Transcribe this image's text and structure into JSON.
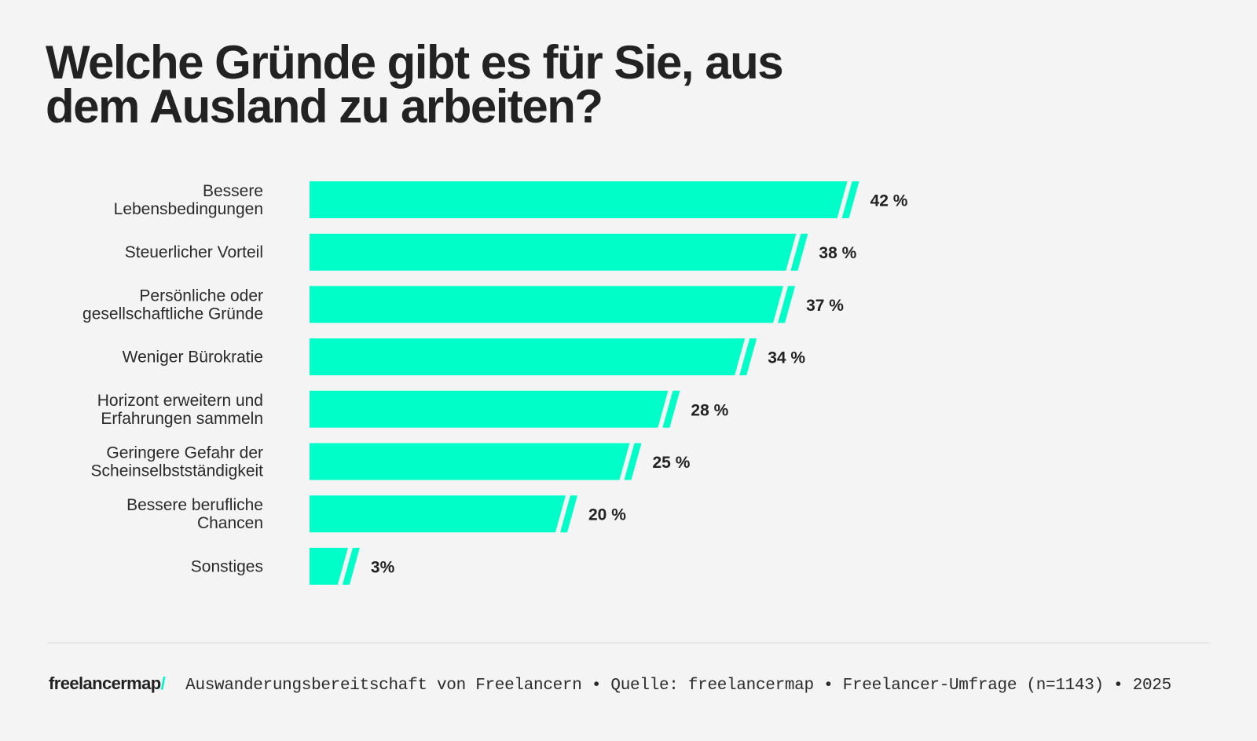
{
  "header": {
    "title_line1": "Welche Gründe gibt es für Sie, aus",
    "title_line2": "dem Ausland zu arbeiten?"
  },
  "colors": {
    "bar": "#00ffc8",
    "text": "#222222",
    "background": "#f4f4f4",
    "accent": "#00f5c4"
  },
  "chart_data": {
    "type": "bar",
    "orientation": "horizontal",
    "title": "Welche Gründe gibt es für Sie, aus dem Ausland zu arbeiten?",
    "xlabel": "",
    "ylabel": "",
    "unit": "%",
    "grid": false,
    "categories": [
      [
        "Bessere",
        "Lebensbedingungen"
      ],
      [
        "Steuerlicher Vorteil"
      ],
      [
        "Persönliche oder",
        "gesellschaftliche Gründe"
      ],
      [
        "Weniger Bürokratie"
      ],
      [
        "Horizont erweitern und",
        "Erfahrungen sammeln"
      ],
      [
        "Geringere Gefahr der",
        "Scheinselbstständigkeit"
      ],
      [
        "Bessere berufliche",
        "Chancen"
      ],
      [
        "Sonstiges"
      ]
    ],
    "values": [
      42,
      38,
      37,
      34,
      28,
      25,
      20,
      3
    ],
    "value_labels": [
      "42 %",
      "38 %",
      "37 %",
      "34 %",
      "28 %",
      "25 %",
      "20 %",
      "3%"
    ],
    "xlim": [
      0,
      100
    ]
  },
  "footer": {
    "logo_text": "freelancermap",
    "logo_slash": "/",
    "source": "Auswanderungsbereitschaft von Freelancern • Quelle: freelancermap • Freelancer-Umfrage (n=1143) • 2025"
  }
}
